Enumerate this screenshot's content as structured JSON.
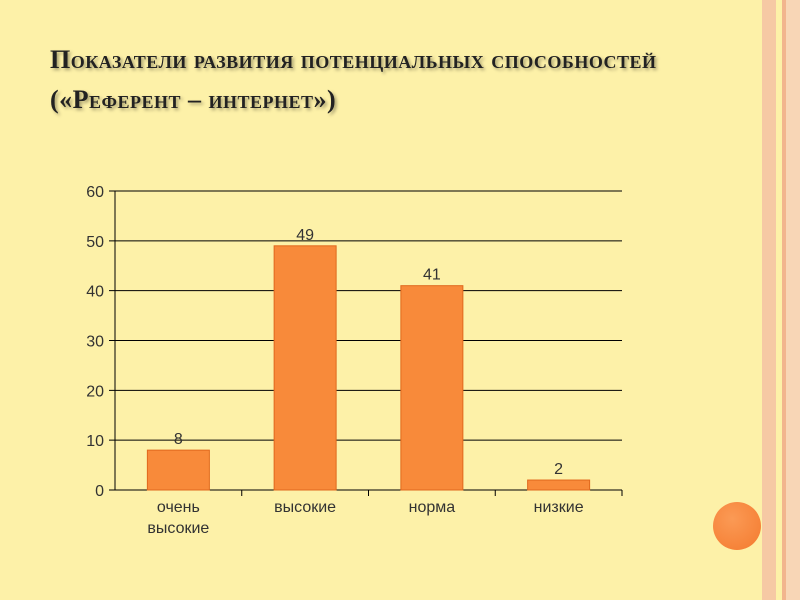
{
  "slide": {
    "title": "Показатели развития потенциальных способностей («Референт – интернет»)"
  },
  "colors": {
    "background": "#fdf1a8",
    "bar": "#f88a3a",
    "bar_border": "#e0681d",
    "accent_circle": "#f47a2e"
  },
  "chart_data": {
    "type": "bar",
    "categories": [
      "очень высокие",
      "высокие",
      "норма",
      "низкие"
    ],
    "category_lines": [
      [
        "очень",
        "высокие"
      ],
      [
        "высокие"
      ],
      [
        "норма"
      ],
      [
        "низкие"
      ]
    ],
    "values": [
      8,
      49,
      41,
      2
    ],
    "data_labels": [
      "8",
      "49",
      "41",
      "2"
    ],
    "ylim": [
      0,
      60
    ],
    "yticks": [
      0,
      10,
      20,
      30,
      40,
      50,
      60
    ],
    "grid": true,
    "legend": "none",
    "title": "",
    "xlabel": "",
    "ylabel": ""
  }
}
